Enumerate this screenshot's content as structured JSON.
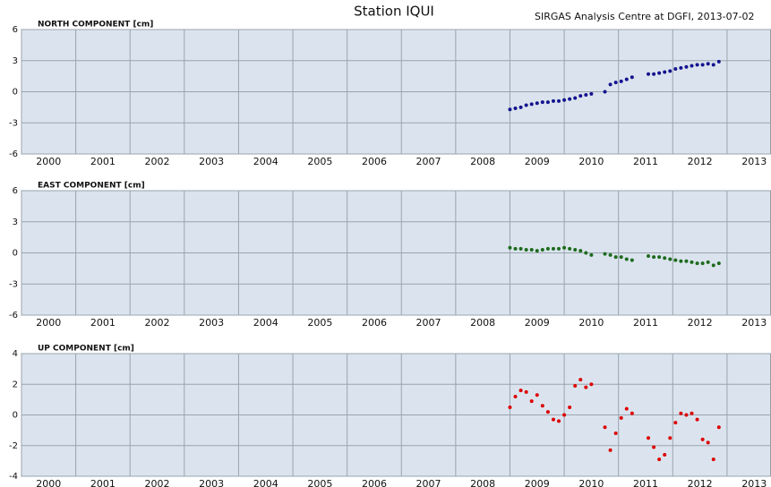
{
  "header": {
    "title": "Station IQUI",
    "source": "SIRGAS Analysis Centre at DGFI, 2013-07-02"
  },
  "chart_data": [
    {
      "type": "scatter",
      "title": "NORTH COMPONENT [cm]",
      "color": "#14148f",
      "x": [
        2009.0,
        2009.1,
        2009.2,
        2009.3,
        2009.4,
        2009.5,
        2009.6,
        2009.7,
        2009.8,
        2009.9,
        2010.0,
        2010.1,
        2010.2,
        2010.3,
        2010.4,
        2010.5,
        2010.75,
        2010.85,
        2010.95,
        2011.05,
        2011.15,
        2011.25,
        2011.55,
        2011.65,
        2011.75,
        2011.85,
        2011.95,
        2012.05,
        2012.15,
        2012.25,
        2012.35,
        2012.45,
        2012.55,
        2012.65,
        2012.75,
        2012.85
      ],
      "values": [
        -1.7,
        -1.6,
        -1.5,
        -1.3,
        -1.2,
        -1.1,
        -1.0,
        -1.0,
        -0.9,
        -0.9,
        -0.8,
        -0.7,
        -0.6,
        -0.4,
        -0.3,
        -0.2,
        0.0,
        0.7,
        0.9,
        1.0,
        1.2,
        1.4,
        1.7,
        1.7,
        1.8,
        1.9,
        2.0,
        2.2,
        2.3,
        2.4,
        2.5,
        2.6,
        2.6,
        2.7,
        2.6,
        2.9
      ],
      "xlim": [
        2000,
        2013.81
      ],
      "xticks": [
        2000,
        2001,
        2002,
        2003,
        2004,
        2005,
        2006,
        2007,
        2008,
        2009,
        2010,
        2011,
        2012,
        2013
      ],
      "ylim": [
        -6,
        6
      ],
      "yticks": [
        -6,
        -3,
        0,
        3,
        6
      ],
      "grid": true
    },
    {
      "type": "scatter",
      "title": "EAST COMPONENT [cm]",
      "color": "#1d6b1d",
      "x": [
        2009.0,
        2009.1,
        2009.2,
        2009.3,
        2009.4,
        2009.5,
        2009.6,
        2009.7,
        2009.8,
        2009.9,
        2010.0,
        2010.1,
        2010.2,
        2010.3,
        2010.4,
        2010.5,
        2010.75,
        2010.85,
        2010.95,
        2011.05,
        2011.15,
        2011.25,
        2011.55,
        2011.65,
        2011.75,
        2011.85,
        2011.95,
        2012.05,
        2012.15,
        2012.25,
        2012.35,
        2012.45,
        2012.55,
        2012.65,
        2012.75,
        2012.85
      ],
      "values": [
        0.5,
        0.4,
        0.4,
        0.3,
        0.3,
        0.2,
        0.3,
        0.4,
        0.4,
        0.4,
        0.5,
        0.4,
        0.3,
        0.2,
        0.0,
        -0.2,
        -0.1,
        -0.2,
        -0.4,
        -0.4,
        -0.6,
        -0.7,
        -0.3,
        -0.4,
        -0.4,
        -0.5,
        -0.6,
        -0.7,
        -0.8,
        -0.8,
        -0.9,
        -1.0,
        -1.0,
        -0.9,
        -1.2,
        -1.0
      ],
      "xlim": [
        2000,
        2013.81
      ],
      "xticks": [
        2000,
        2001,
        2002,
        2003,
        2004,
        2005,
        2006,
        2007,
        2008,
        2009,
        2010,
        2011,
        2012,
        2013
      ],
      "ylim": [
        -6,
        6
      ],
      "yticks": [
        -6,
        -3,
        0,
        3,
        6
      ],
      "grid": true
    },
    {
      "type": "scatter",
      "title": "UP COMPONENT [cm]",
      "color": "#dd0000",
      "x": [
        2009.0,
        2009.1,
        2009.2,
        2009.3,
        2009.4,
        2009.5,
        2009.6,
        2009.7,
        2009.8,
        2009.9,
        2010.0,
        2010.1,
        2010.2,
        2010.3,
        2010.4,
        2010.5,
        2010.75,
        2010.85,
        2010.95,
        2011.05,
        2011.15,
        2011.25,
        2011.55,
        2011.65,
        2011.75,
        2011.85,
        2011.95,
        2012.05,
        2012.15,
        2012.25,
        2012.35,
        2012.45,
        2012.55,
        2012.65,
        2012.75,
        2012.85
      ],
      "values": [
        0.5,
        1.2,
        1.6,
        1.5,
        0.9,
        1.3,
        0.6,
        0.2,
        -0.3,
        -0.4,
        0.0,
        0.5,
        1.9,
        2.3,
        1.8,
        2.0,
        -0.8,
        -2.3,
        -1.2,
        -0.2,
        0.4,
        0.1,
        -1.5,
        -2.1,
        -2.9,
        -2.6,
        -1.5,
        -0.5,
        0.1,
        0.0,
        0.1,
        -0.3,
        -1.6,
        -1.8,
        -2.9,
        -0.8
      ],
      "xlim": [
        2000,
        2013.81
      ],
      "xticks": [
        2000,
        2001,
        2002,
        2003,
        2004,
        2005,
        2006,
        2007,
        2008,
        2009,
        2010,
        2011,
        2012,
        2013
      ],
      "ylim": [
        -4,
        4
      ],
      "yticks": [
        -4,
        -2,
        0,
        2,
        4
      ],
      "grid": true
    }
  ]
}
